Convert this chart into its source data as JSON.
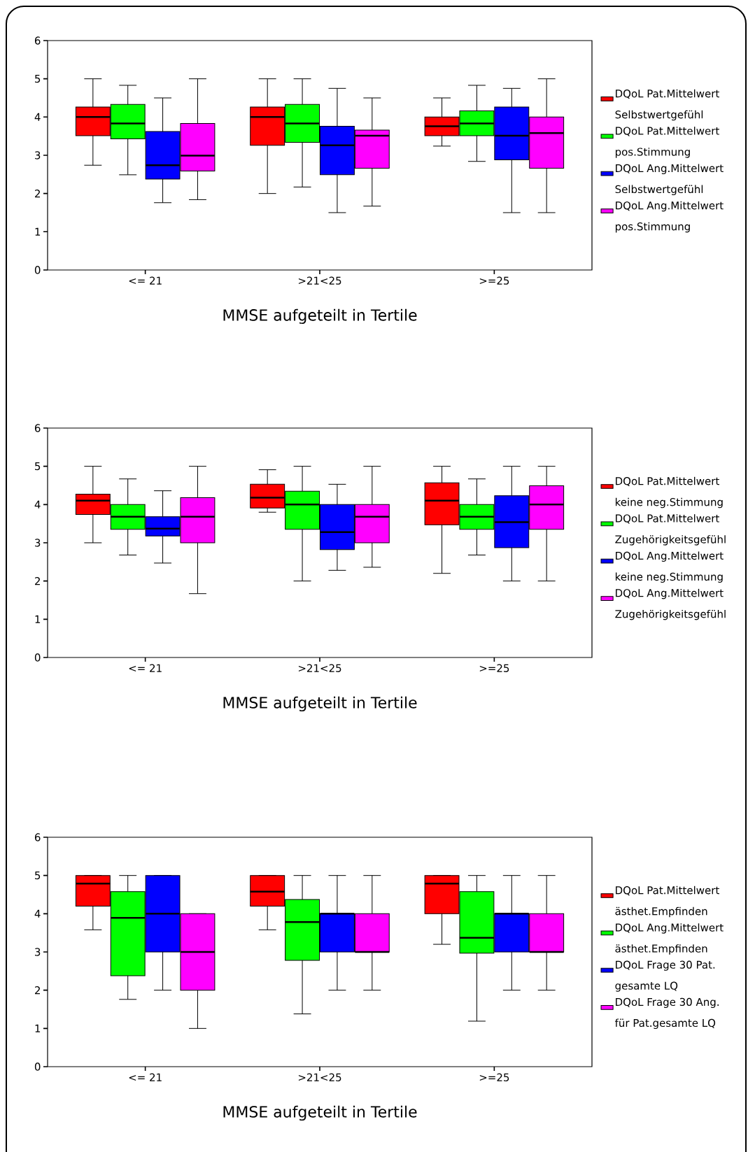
{
  "chart_data": [
    {
      "type": "box",
      "xlabel": "MMSE aufgeteilt in Tertile",
      "categories": [
        "<= 21",
        ">21<25",
        ">=25"
      ],
      "ylim": [
        0,
        6
      ],
      "yticks": [
        0,
        1,
        2,
        3,
        4,
        5,
        6
      ],
      "legend": "right",
      "series": [
        {
          "name": "DQoL Pat.Mittelwert Selbstwertgefühl",
          "color": "#ff0000",
          "boxes": [
            {
              "low": 2.74,
              "q1": 3.51,
              "median": 4.0,
              "q3": 4.26,
              "high": 5.0
            },
            {
              "low": 2.0,
              "q1": 3.26,
              "median": 4.0,
              "q3": 4.26,
              "high": 5.0
            },
            {
              "low": 3.24,
              "q1": 3.51,
              "median": 3.76,
              "q3": 4.0,
              "high": 4.5
            }
          ]
        },
        {
          "name": "DQoL Pat.Mittelwert pos.Stimmung",
          "color": "#00ff00",
          "boxes": [
            {
              "low": 2.49,
              "q1": 3.43,
              "median": 3.83,
              "q3": 4.33,
              "high": 4.83
            },
            {
              "low": 2.17,
              "q1": 3.34,
              "median": 3.83,
              "q3": 4.33,
              "high": 5.0
            },
            {
              "low": 2.84,
              "q1": 3.51,
              "median": 3.83,
              "q3": 4.16,
              "high": 4.83
            }
          ]
        },
        {
          "name": "DQoL Ang.Mittelwert Selbstwertgefühl",
          "color": "#0000ff",
          "boxes": [
            {
              "low": 1.76,
              "q1": 2.38,
              "median": 2.74,
              "q3": 3.62,
              "high": 4.5
            },
            {
              "low": 1.5,
              "q1": 2.49,
              "median": 3.26,
              "q3": 3.76,
              "high": 4.75
            },
            {
              "low": 1.5,
              "q1": 2.88,
              "median": 3.51,
              "q3": 4.26,
              "high": 4.75
            }
          ]
        },
        {
          "name": "DQoL Ang.Mittelwert pos.Stimmung",
          "color": "#ff00ff",
          "boxes": [
            {
              "low": 1.84,
              "q1": 2.59,
              "median": 2.99,
              "q3": 3.83,
              "high": 5.0
            },
            {
              "low": 1.67,
              "q1": 2.66,
              "median": 3.51,
              "q3": 3.66,
              "high": 4.5
            },
            {
              "low": 1.5,
              "q1": 2.66,
              "median": 3.58,
              "q3": 4.0,
              "high": 5.0
            }
          ]
        }
      ]
    },
    {
      "type": "box",
      "xlabel": "MMSE aufgeteilt in Tertile",
      "categories": [
        "<= 21",
        ">21<25",
        ">=25"
      ],
      "ylim": [
        0,
        6
      ],
      "yticks": [
        0,
        1,
        2,
        3,
        4,
        5,
        6
      ],
      "legend": "right",
      "series": [
        {
          "name": "DQoL Pat.Mittelwert keine neg.Stimmung",
          "color": "#ff0000",
          "boxes": [
            {
              "low": 3.0,
              "q1": 3.74,
              "median": 4.1,
              "q3": 4.27,
              "high": 5.0
            },
            {
              "low": 3.8,
              "q1": 3.91,
              "median": 4.18,
              "q3": 4.53,
              "high": 4.91
            },
            {
              "low": 2.2,
              "q1": 3.47,
              "median": 4.1,
              "q3": 4.57,
              "high": 5.0
            }
          ]
        },
        {
          "name": "DQoL Pat.Mittelwert Zugehörigkeitsgefühl",
          "color": "#00ff00",
          "boxes": [
            {
              "low": 2.68,
              "q1": 3.35,
              "median": 3.68,
              "q3": 4.0,
              "high": 4.67
            },
            {
              "low": 2.0,
              "q1": 3.35,
              "median": 4.0,
              "q3": 4.35,
              "high": 5.0
            },
            {
              "low": 2.68,
              "q1": 3.35,
              "median": 3.68,
              "q3": 4.0,
              "high": 4.67
            }
          ]
        },
        {
          "name": "DQoL Ang.Mittelwert keine neg.Stimmung",
          "color": "#0000ff",
          "boxes": [
            {
              "low": 2.47,
              "q1": 3.18,
              "median": 3.37,
              "q3": 3.68,
              "high": 4.36
            },
            {
              "low": 2.28,
              "q1": 2.82,
              "median": 3.28,
              "q3": 4.0,
              "high": 4.53
            },
            {
              "low": 2.0,
              "q1": 2.87,
              "median": 3.54,
              "q3": 4.23,
              "high": 5.0
            }
          ]
        },
        {
          "name": "DQoL Ang.Mittelwert Zugehörigkeitsgefühl",
          "color": "#ff00ff",
          "boxes": [
            {
              "low": 1.67,
              "q1": 3.0,
              "median": 3.68,
              "q3": 4.18,
              "high": 5.0
            },
            {
              "low": 2.36,
              "q1": 3.0,
              "median": 3.68,
              "q3": 4.0,
              "high": 5.0
            },
            {
              "low": 2.0,
              "q1": 3.35,
              "median": 4.0,
              "q3": 4.49,
              "high": 5.0
            }
          ]
        }
      ]
    },
    {
      "type": "box",
      "xlabel": "MMSE aufgeteilt in Tertile",
      "categories": [
        "<= 21",
        ">21<25",
        ">=25"
      ],
      "ylim": [
        0,
        6
      ],
      "yticks": [
        0,
        1,
        2,
        3,
        4,
        5,
        6
      ],
      "legend": "right",
      "series": [
        {
          "name": "DQoL Pat.Mittelwert ästhet.Empfinden",
          "color": "#ff0000",
          "boxes": [
            {
              "low": 3.58,
              "q1": 4.2,
              "median": 4.79,
              "q3": 5.0,
              "high": 5.0
            },
            {
              "low": 3.58,
              "q1": 4.2,
              "median": 4.58,
              "q3": 5.0,
              "high": 5.0
            },
            {
              "low": 3.2,
              "q1": 4.0,
              "median": 4.79,
              "q3": 5.0,
              "high": 5.0
            }
          ]
        },
        {
          "name": "DQoL Ang.Mittelwert ästhet.Empfinden",
          "color": "#00ff00",
          "boxes": [
            {
              "low": 1.76,
              "q1": 2.38,
              "median": 3.89,
              "q3": 4.58,
              "high": 5.0
            },
            {
              "low": 1.38,
              "q1": 2.78,
              "median": 3.78,
              "q3": 4.37,
              "high": 5.0
            },
            {
              "low": 1.19,
              "q1": 2.97,
              "median": 3.37,
              "q3": 4.58,
              "high": 5.0
            }
          ]
        },
        {
          "name": "DQoL Frage 30 Pat. gesamte LQ",
          "color": "#0000ff",
          "boxes": [
            {
              "low": 2,
              "q1": 3,
              "median": 4,
              "q3": 5,
              "high": 5
            },
            {
              "low": 2,
              "q1": 3,
              "median": 4,
              "q3": 4,
              "high": 5
            },
            {
              "low": 2,
              "q1": 3,
              "median": 4,
              "q3": 4,
              "high": 5
            }
          ]
        },
        {
          "name": "DQoL Frage 30 Ang. für Pat.gesamte LQ",
          "color": "#ff00ff",
          "boxes": [
            {
              "low": 1,
              "q1": 2,
              "median": 3,
              "q3": 4,
              "high": 4
            },
            {
              "low": 2,
              "q1": 3,
              "median": 3,
              "q3": 4,
              "high": 5
            },
            {
              "low": 2,
              "q1": 3,
              "median": 3,
              "q3": 4,
              "high": 5
            }
          ]
        }
      ]
    }
  ]
}
